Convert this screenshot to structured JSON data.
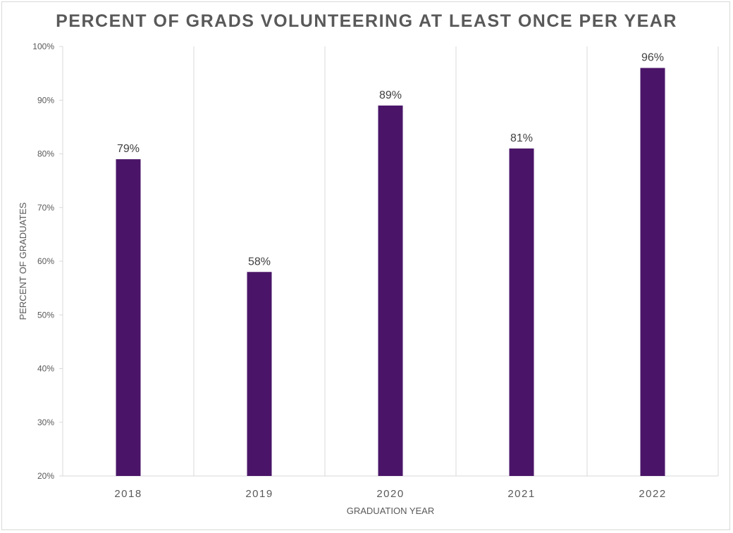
{
  "chart_data": {
    "type": "bar",
    "title": "PERCENT OF GRADS VOLUNTEERING AT LEAST ONCE PER YEAR",
    "xlabel": "GRADUATION YEAR",
    "ylabel": "PERCENT OF GRADUATES",
    "categories": [
      "2018",
      "2019",
      "2020",
      "2021",
      "2022"
    ],
    "values": [
      79,
      58,
      89,
      81,
      96
    ],
    "data_labels": [
      "79%",
      "58%",
      "89%",
      "81%",
      "96%"
    ],
    "ylim": [
      20,
      100
    ],
    "yticks": [
      20,
      30,
      40,
      50,
      60,
      70,
      80,
      90,
      100
    ],
    "ytick_labels": [
      "20%",
      "30%",
      "40%",
      "50%",
      "60%",
      "70%",
      "80%",
      "90%",
      "100%"
    ],
    "grid": "vertical category separators",
    "bar_color": "#4a1568",
    "legend": "none"
  }
}
